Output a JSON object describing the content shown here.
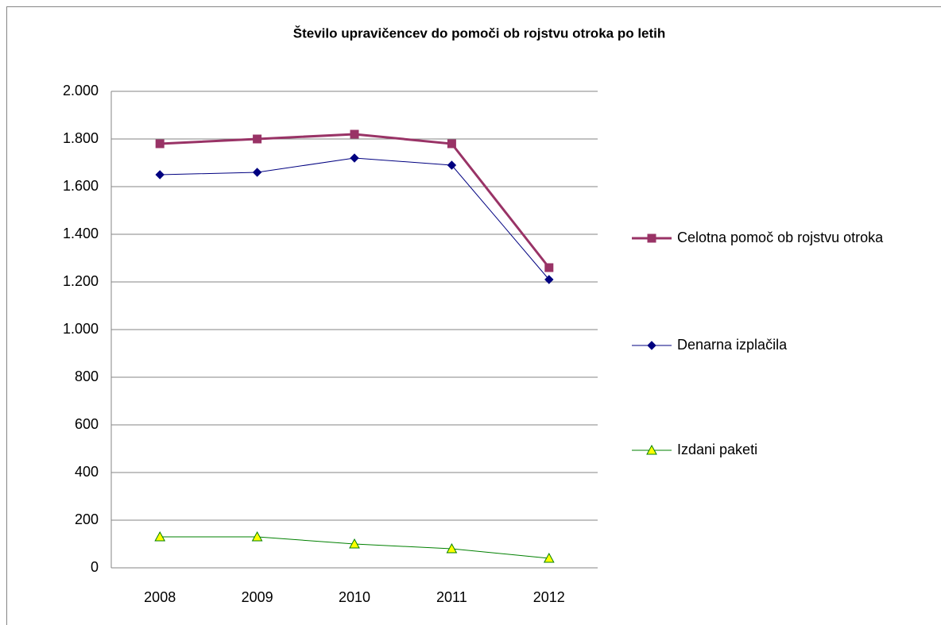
{
  "chart_data": {
    "type": "line",
    "title": "Število upravičencev do pomoči ob rojstvu otroka po letih",
    "categories": [
      "2008",
      "2009",
      "2010",
      "2011",
      "2012"
    ],
    "series": [
      {
        "name": "Celotna pomoč ob rojstvu otroka",
        "color": "#993366",
        "marker": "square",
        "line_width": 3,
        "values": [
          1780,
          1800,
          1820,
          1780,
          1260
        ]
      },
      {
        "name": "Denarna izplačila",
        "color": "#000080",
        "marker": "diamond",
        "line_width": 1,
        "values": [
          1650,
          1660,
          1720,
          1690,
          1210
        ]
      },
      {
        "name": "Izdani paketi",
        "color": "#008000",
        "marker": "triangle",
        "marker_fill": "#ffff00",
        "line_width": 1,
        "values": [
          130,
          130,
          100,
          80,
          40
        ]
      }
    ],
    "ylim": [
      0,
      2000
    ],
    "yticks": [
      0,
      200,
      400,
      600,
      800,
      {
        "value": 1000,
        "label": "1.000"
      },
      {
        "value": 1200,
        "label": "1.200"
      },
      {
        "value": 1400,
        "label": "1.400"
      },
      {
        "value": 1600,
        "label": "1.600"
      },
      {
        "value": 1800,
        "label": "1.800"
      },
      {
        "value": 2000,
        "label": "2.000"
      }
    ],
    "grid": true,
    "legend": "right"
  }
}
